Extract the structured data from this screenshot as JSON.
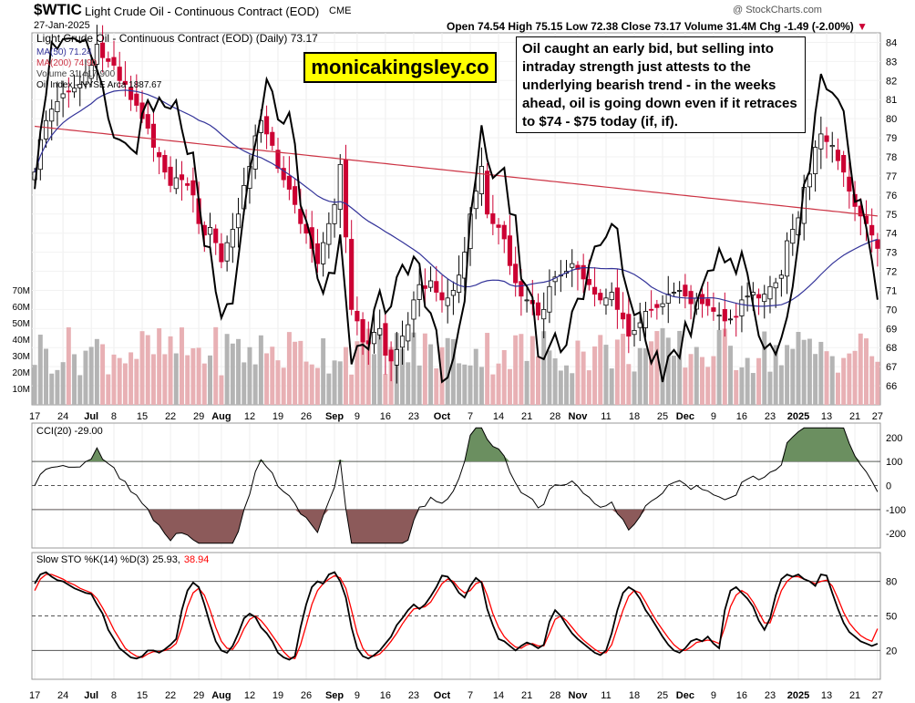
{
  "header": {
    "symbol": "$WTIC",
    "name": "Light Crude Oil - Continuous Contract (EOD)",
    "exchange": "CME",
    "date": "27-Jan-2025",
    "open_label": "Open",
    "open": "74.54",
    "high_label": "High",
    "high": "75.15",
    "low_label": "Low",
    "low": "72.38",
    "close_label": "Close",
    "close": "73.17",
    "volume_label": "Volume",
    "volume": "31.4M",
    "chg_label": "Chg",
    "chg": "-1.49 (-2.00%)",
    "credit": "@ StockCharts.com"
  },
  "legend": {
    "main": "Light Crude Oil - Continuous Contract (EOD) (Daily) 73.17",
    "ma50": "MA(50) 71.24",
    "ma200": "MA(200) 74.90",
    "volume": "Volume 31,417,900",
    "oil_index": "Oil Index - NYSE Arca 1887.67",
    "cci": "CCI(20) -29.00",
    "sto_prefix": "Slow STO %K(14) %D(3)",
    "sto_k": "25.93,",
    "sto_d": "38.94"
  },
  "annotation": "Oil caught an early bid, but selling into intraday strength just attests to the underlying bearish trend - in the weeks ahead, oil is going down even if it retraces to $74 - $75 today (if, if).",
  "watermark": "monicakingsley.co",
  "colors": {
    "up": "#ffffff",
    "down": "#cc0033",
    "ma50": "#333399",
    "ma200": "#cc3344",
    "index": "#000000",
    "vol_up": "#b4b4b4",
    "vol_down": "#e8b0b4",
    "cci_fill_pos": "#6b8f60",
    "cci_fill_neg": "#8c5a5a",
    "sto_d": "#ff0000"
  },
  "chart_data": [
    {
      "type": "candlestick",
      "panel": "price",
      "ylim": [
        65,
        84.5
      ],
      "y_ticks": [
        66,
        67,
        68,
        69,
        70,
        71,
        72,
        73,
        74,
        75,
        76,
        77,
        78,
        79,
        80,
        81,
        82,
        83,
        84
      ],
      "volume_ticks": [
        "10M",
        "20M",
        "30M",
        "40M",
        "50M",
        "60M",
        "70M"
      ],
      "volume_lim": [
        0,
        80
      ],
      "x_labels": [
        {
          "i": 0,
          "t": "17"
        },
        {
          "i": 5,
          "t": "24"
        },
        {
          "i": 10,
          "t": "Jul"
        },
        {
          "i": 14,
          "t": "8"
        },
        {
          "i": 19,
          "t": "15"
        },
        {
          "i": 24,
          "t": "22"
        },
        {
          "i": 29,
          "t": "29"
        },
        {
          "i": 33,
          "t": "Aug"
        },
        {
          "i": 38,
          "t": "12"
        },
        {
          "i": 43,
          "t": "19"
        },
        {
          "i": 48,
          "t": "26"
        },
        {
          "i": 53,
          "t": "Sep"
        },
        {
          "i": 57,
          "t": "9"
        },
        {
          "i": 62,
          "t": "16"
        },
        {
          "i": 67,
          "t": "23"
        },
        {
          "i": 72,
          "t": "Oct"
        },
        {
          "i": 77,
          "t": "7"
        },
        {
          "i": 82,
          "t": "14"
        },
        {
          "i": 87,
          "t": "21"
        },
        {
          "i": 92,
          "t": "28"
        },
        {
          "i": 96,
          "t": "Nov"
        },
        {
          "i": 101,
          "t": "11"
        },
        {
          "i": 106,
          "t": "18"
        },
        {
          "i": 111,
          "t": "25"
        },
        {
          "i": 115,
          "t": "Dec"
        },
        {
          "i": 120,
          "t": "9"
        },
        {
          "i": 125,
          "t": "16"
        },
        {
          "i": 130,
          "t": "23"
        },
        {
          "i": 135,
          "t": "2025"
        },
        {
          "i": 140,
          "t": "13"
        },
        {
          "i": 145,
          "t": "21"
        },
        {
          "i": 149,
          "t": "27"
        }
      ],
      "close": [
        77.2,
        78.9,
        79.9,
        80.5,
        80.9,
        81.3,
        81.4,
        81.6,
        81.8,
        82.4,
        82.8,
        83.9,
        83.2,
        83.0,
        82.8,
        82.0,
        81.8,
        81.0,
        80.7,
        80.0,
        79.5,
        78.5,
        78.0,
        77.2,
        76.5,
        76.9,
        76.8,
        76.5,
        76.0,
        74.5,
        73.9,
        74.3,
        73.5,
        72.5,
        73.5,
        74.2,
        75.0,
        76.5,
        77.5,
        79.1,
        79.9,
        79.2,
        78.6,
        77.4,
        76.8,
        76.3,
        75.5,
        74.5,
        74.0,
        73.2,
        72.4,
        73.5,
        74.5,
        75.5,
        77.6,
        73.8,
        70.0,
        69.4,
        68.3,
        68.2,
        68.8,
        69.0,
        67.6,
        67.3,
        67.9,
        68.6,
        69.2,
        70.5,
        71.3,
        71.1,
        71.5,
        70.9,
        70.5,
        70.6,
        71.0,
        71.8,
        73.0,
        75.0,
        76.2,
        77.5,
        75.0,
        74.5,
        74.3,
        73.7,
        72.3,
        71.4,
        70.7,
        70.5,
        70.3,
        69.7,
        70.0,
        71.2,
        71.7,
        71.8,
        72.0,
        72.4,
        72.1,
        71.6,
        71.3,
        70.8,
        70.5,
        70.6,
        70.9,
        70.0,
        69.5,
        68.6,
        68.9,
        69.3,
        69.9,
        70.0,
        70.1,
        70.3,
        70.8,
        70.9,
        71.0,
        70.7,
        70.3,
        70.6,
        70.3,
        70.2,
        69.9,
        69.7,
        69.4,
        69.5,
        69.6,
        70.5,
        70.7,
        70.9,
        70.6,
        70.8,
        71.2,
        71.4,
        71.8,
        73.6,
        74.2,
        74.8,
        76.4,
        77.1,
        78.5,
        79.2,
        78.8,
        78.6,
        77.8,
        77.2,
        76.2,
        75.4,
        74.9,
        74.5,
        73.9,
        73.2
      ],
      "sto_k": [
        78,
        86,
        88,
        84,
        81,
        80,
        77,
        74,
        72,
        70,
        69,
        60,
        52,
        38,
        30,
        22,
        18,
        14,
        13,
        15,
        20,
        20,
        18,
        21,
        25,
        30,
        55,
        72,
        79,
        75,
        60,
        43,
        28,
        20,
        18,
        24,
        35,
        48,
        52,
        49,
        40,
        35,
        28,
        18,
        14,
        12,
        15,
        40,
        60,
        75,
        80,
        78,
        86,
        88,
        80,
        66,
        40,
        22,
        15,
        13,
        16,
        20,
        26,
        32,
        42,
        48,
        55,
        60,
        56,
        60,
        67,
        75,
        85,
        84,
        78,
        70,
        66,
        76,
        83,
        79,
        56,
        42,
        30,
        28,
        24,
        20,
        24,
        27,
        25,
        22,
        25,
        45,
        55,
        50,
        42,
        35,
        30,
        26,
        22,
        18,
        16,
        20,
        35,
        55,
        70,
        75,
        72,
        65,
        55,
        48,
        40,
        32,
        25,
        20,
        18,
        22,
        28,
        30,
        28,
        32,
        26,
        22,
        55,
        72,
        75,
        70,
        65,
        58,
        46,
        38,
        48,
        68,
        82,
        86,
        84,
        86,
        82,
        80,
        76,
        86,
        85,
        70,
        56,
        44,
        36,
        32,
        28,
        26,
        24,
        25.93
      ],
      "sto_d": [
        72,
        82,
        86,
        86,
        84,
        82,
        79,
        77,
        74,
        72,
        70,
        65,
        57,
        48,
        38,
        30,
        22,
        18,
        15,
        14,
        17,
        19,
        19,
        20,
        22,
        26,
        40,
        58,
        70,
        74,
        68,
        55,
        40,
        28,
        22,
        21,
        28,
        39,
        47,
        50,
        46,
        40,
        33,
        26,
        19,
        14,
        13,
        25,
        42,
        60,
        72,
        78,
        82,
        85,
        83,
        74,
        55,
        35,
        22,
        16,
        15,
        17,
        22,
        28,
        35,
        43,
        50,
        56,
        57,
        58,
        62,
        70,
        78,
        82,
        80,
        74,
        70,
        72,
        78,
        80,
        68,
        52,
        40,
        32,
        27,
        23,
        22,
        25,
        26,
        24,
        24,
        35,
        47,
        50,
        46,
        40,
        34,
        29,
        25,
        21,
        18,
        18,
        25,
        40,
        55,
        67,
        72,
        70,
        62,
        53,
        45,
        38,
        31,
        25,
        21,
        20,
        23,
        27,
        28,
        29,
        28,
        26,
        40,
        58,
        68,
        72,
        69,
        62,
        53,
        44,
        44,
        58,
        72,
        80,
        84,
        84,
        82,
        80,
        78,
        80,
        81,
        76,
        65,
        53,
        44,
        38,
        33,
        30,
        28,
        38.94
      ],
      "cci_ticks": [
        -200,
        -100,
        0,
        100,
        200
      ],
      "sto_ticks": [
        20,
        50,
        80
      ]
    }
  ]
}
